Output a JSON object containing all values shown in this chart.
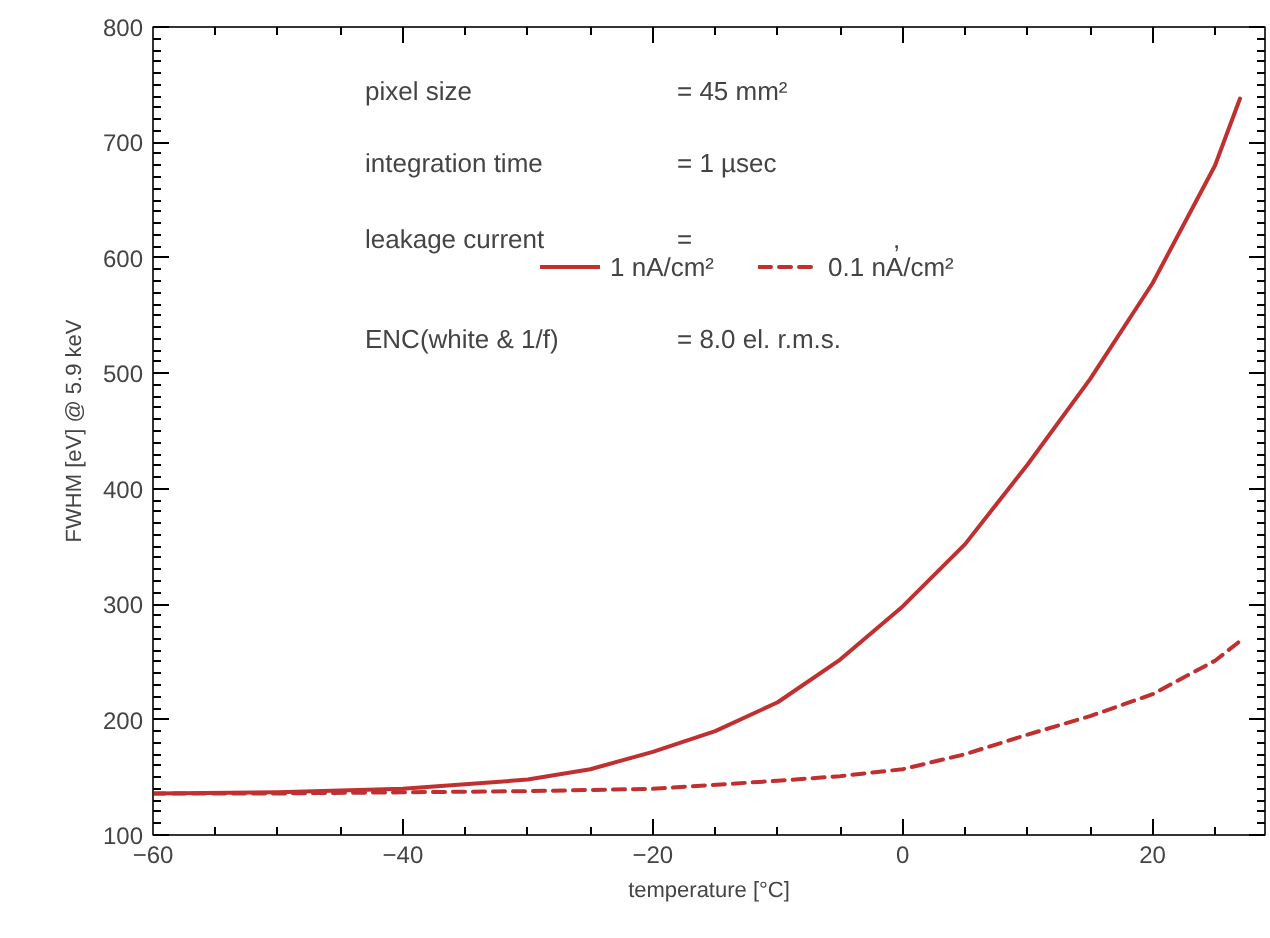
{
  "chart_data": {
    "type": "line",
    "xlabel": "temperature [°C]",
    "ylabel": "FWHM [eV] @ 5.9 keV",
    "xlim": [
      -60,
      29
    ],
    "ylim": [
      100,
      800
    ],
    "xticks": [
      {
        "value": -60,
        "label": "−60"
      },
      {
        "value": -40,
        "label": "−40"
      },
      {
        "value": -20,
        "label": "−20"
      },
      0,
      20
    ],
    "yticks": [
      100,
      200,
      300,
      400,
      500,
      600,
      700,
      800
    ],
    "grid": false,
    "legend": "top",
    "marker": "none",
    "annotations": [
      "pixel size",
      "= 45 mm²",
      "integration time",
      "= 1 µsec",
      "leakage current",
      "=",
      "ENC(white & 1/f)",
      "= 8.0 el. r.m.s.",
      ","
    ],
    "series": [
      {
        "name": "1 nA/cm²",
        "color": "#c03030",
        "line_style": "solid",
        "x": [
          -60,
          -50,
          -40,
          -30,
          -25,
          -20,
          -15,
          -10,
          -5,
          0,
          5,
          10,
          15,
          20,
          25,
          27
        ],
        "values": [
          136,
          137,
          140,
          148,
          157,
          172,
          190,
          215,
          252,
          298,
          352,
          421,
          495,
          578,
          680,
          738
        ]
      },
      {
        "name": "0.1 nA/cm²",
        "color": "#c03030",
        "line_style": "dashed",
        "x": [
          -60,
          -50,
          -40,
          -30,
          -20,
          -10,
          -5,
          0,
          5,
          10,
          15,
          20,
          25,
          27
        ],
        "values": [
          136,
          136,
          137,
          138,
          140,
          147,
          151,
          157,
          170,
          187,
          203,
          222,
          251,
          268
        ]
      }
    ]
  }
}
